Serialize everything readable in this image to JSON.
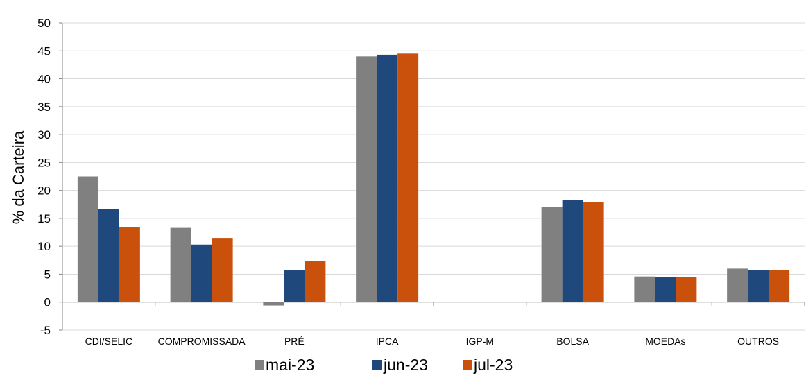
{
  "chart_data": {
    "type": "bar",
    "title": "",
    "xlabel": "",
    "ylabel": "% da Carteira",
    "ylim": [
      -5,
      50
    ],
    "yticks": [
      -5,
      0,
      5,
      10,
      15,
      20,
      25,
      30,
      35,
      40,
      45,
      50
    ],
    "grid": true,
    "legend_position": "bottom",
    "categories": [
      "CDI/SELIC",
      "COMPROMISSADA",
      "PRÉ",
      "IPCA",
      "IGP-M",
      "BOLSA",
      "MOEDAs",
      "OUTROS"
    ],
    "series": [
      {
        "name": "mai-23",
        "color": "#808080",
        "values": [
          22.5,
          13.3,
          -0.6,
          44.0,
          0.0,
          17.0,
          4.6,
          6.0
        ]
      },
      {
        "name": "jun-23",
        "color": "#1F497D",
        "values": [
          16.7,
          10.3,
          5.7,
          44.3,
          0.0,
          18.3,
          4.5,
          5.7
        ]
      },
      {
        "name": "jul-23",
        "color": "#C9510C",
        "values": [
          13.4,
          11.5,
          7.4,
          44.5,
          0.0,
          17.9,
          4.5,
          5.8
        ]
      }
    ]
  }
}
